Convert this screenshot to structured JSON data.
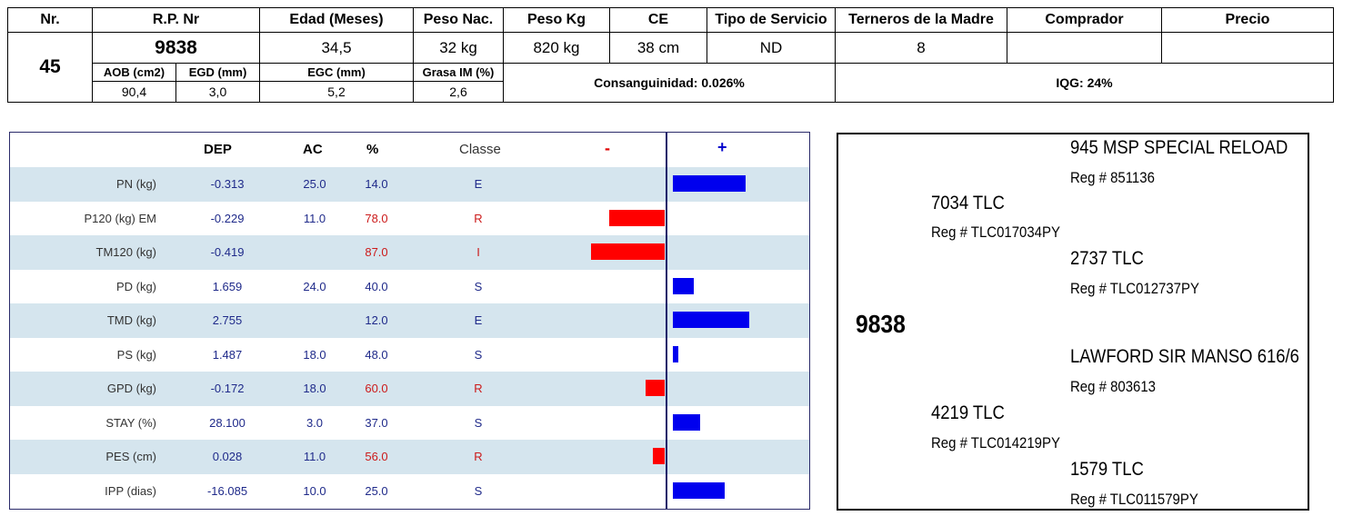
{
  "top": {
    "headers": [
      "Nr.",
      "R.P. Nr",
      "Edad (Meses)",
      "Peso Nac.",
      "Peso Kg",
      "CE",
      "Tipo de Servicio",
      "Terneros de la Madre",
      "Comprador",
      "Precio"
    ],
    "nr": "45",
    "rp": "9838",
    "edad": "34,5",
    "peso_nac": "32 kg",
    "peso_kg": "820 kg",
    "ce": "38 cm",
    "tipo_servicio": "ND",
    "terneros": "8",
    "comprador": "",
    "precio": "",
    "sub_headers": [
      "AOB (cm2)",
      "EGD (mm)",
      "EGC (mm)",
      "Grasa IM (%)"
    ],
    "sub_values": [
      "90,4",
      "3,0",
      "5,2",
      "2,6"
    ],
    "consanguinidad": "Consanguinidad: 0.026%",
    "iqg": "IQG: 24%"
  },
  "epd": {
    "columns": {
      "dep": "DEP",
      "ac": "AC",
      "pct": "%",
      "classe": "Classe",
      "minus": "-",
      "plus": "+"
    },
    "rows": [
      {
        "label": "PN (kg)",
        "dep": "-0.313",
        "ac": "25.0",
        "pct": "14.0",
        "classe": "E",
        "bar": 0.8
      },
      {
        "label": "P120 (kg) EM",
        "dep": "-0.229",
        "ac": "11.0",
        "pct": "78.0",
        "classe": "R",
        "bar": -0.61
      },
      {
        "label": "TM120 (kg)",
        "dep": "-0.419",
        "ac": "",
        "pct": "87.0",
        "classe": "I",
        "bar": -0.81
      },
      {
        "label": "PD (kg)",
        "dep": "1.659",
        "ac": "24.0",
        "pct": "40.0",
        "classe": "S",
        "bar": 0.23
      },
      {
        "label": "TMD (kg)",
        "dep": "2.755",
        "ac": "",
        "pct": "12.0",
        "classe": "E",
        "bar": 0.84
      },
      {
        "label": "PS (kg)",
        "dep": "1.487",
        "ac": "18.0",
        "pct": "48.0",
        "classe": "S",
        "bar": 0.06
      },
      {
        "label": "GPD (kg)",
        "dep": "-0.172",
        "ac": "18.0",
        "pct": "60.0",
        "classe": "R",
        "bar": -0.21
      },
      {
        "label": "STAY (%)",
        "dep": "28.100",
        "ac": "3.0",
        "pct": "37.0",
        "classe": "S",
        "bar": 0.3
      },
      {
        "label": "PES (cm)",
        "dep": "0.028",
        "ac": "11.0",
        "pct": "56.0",
        "classe": "R",
        "bar": -0.13
      },
      {
        "label": "IPP (dias)",
        "dep": "-16.085",
        "ac": "10.0",
        "pct": "25.0",
        "classe": "S",
        "bar": 0.57
      }
    ]
  },
  "pedigree": {
    "animal": "9838",
    "sire": {
      "name": "7034 TLC",
      "reg": "Reg # TLC017034PY"
    },
    "sire_sire": {
      "name": "945 MSP SPECIAL RELOAD",
      "reg": "Reg # 851136"
    },
    "sire_dam": {
      "name": "2737 TLC",
      "reg": "Reg # TLC012737PY"
    },
    "dam": {
      "name": "4219 TLC",
      "reg": "Reg # TLC014219PY"
    },
    "dam_sire": {
      "name": "LAWFORD SIR  MANSO 616/6",
      "reg": "Reg # 803613"
    },
    "dam_dam": {
      "name": "1579 TLC",
      "reg": "Reg # TLC011579PY"
    }
  }
}
